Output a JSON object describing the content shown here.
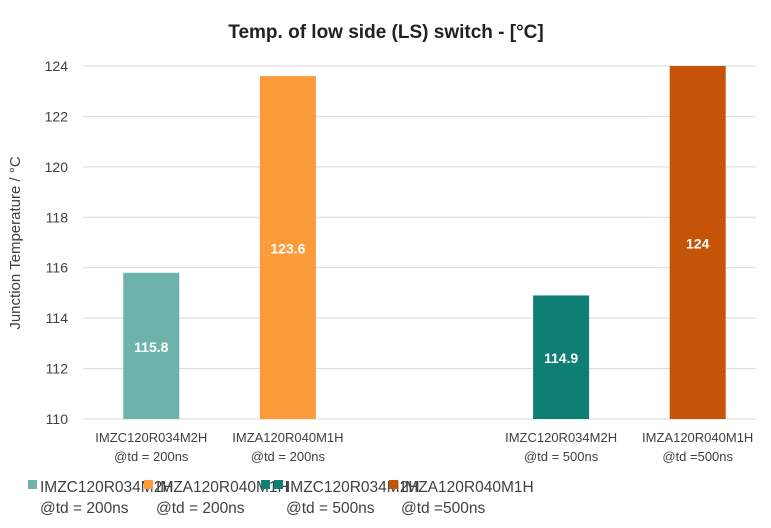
{
  "chart_data": {
    "type": "bar",
    "title": "Temp. of low side (LS) switch - [°C]",
    "xlabel": "",
    "ylabel": "Junction Temperature / °C",
    "ylim": [
      110,
      124
    ],
    "yticks": [
      110,
      112,
      114,
      116,
      118,
      120,
      122,
      124
    ],
    "grid": true,
    "legend_position": "bottom",
    "categories": [
      [
        "IMZC120R034M2H",
        "@td = 200ns"
      ],
      [
        "IMZA120R040M1H",
        "@td = 200ns"
      ],
      [
        "",
        ""
      ],
      [
        "IMZC120R034M2H",
        "@td = 500ns"
      ],
      [
        "IMZA120R040M1H",
        "@td =500ns"
      ]
    ],
    "series": [
      {
        "name": [
          "IMZC120R034M2H",
          "@td = 200ns"
        ],
        "color": "#6db3ac",
        "values": [
          115.8,
          null,
          null,
          null,
          null
        ]
      },
      {
        "name": [
          "IMZA120R040M1H",
          "@td = 200ns"
        ],
        "color": "#fd9a3a",
        "values": [
          null,
          123.6,
          null,
          null,
          null
        ]
      },
      {
        "name": [
          "",
          ""
        ],
        "color": "#0e7f72",
        "values": [
          null,
          null,
          null,
          null,
          null
        ]
      },
      {
        "name": [
          "IMZC120R034M2H",
          "@td = 500ns"
        ],
        "color": "#0e7f72",
        "values": [
          null,
          null,
          null,
          114.9,
          null
        ]
      },
      {
        "name": [
          "IMZA120R040M1H",
          "@td =500ns"
        ],
        "color": "#c65408",
        "values": [
          null,
          null,
          null,
          null,
          124
        ]
      }
    ]
  }
}
